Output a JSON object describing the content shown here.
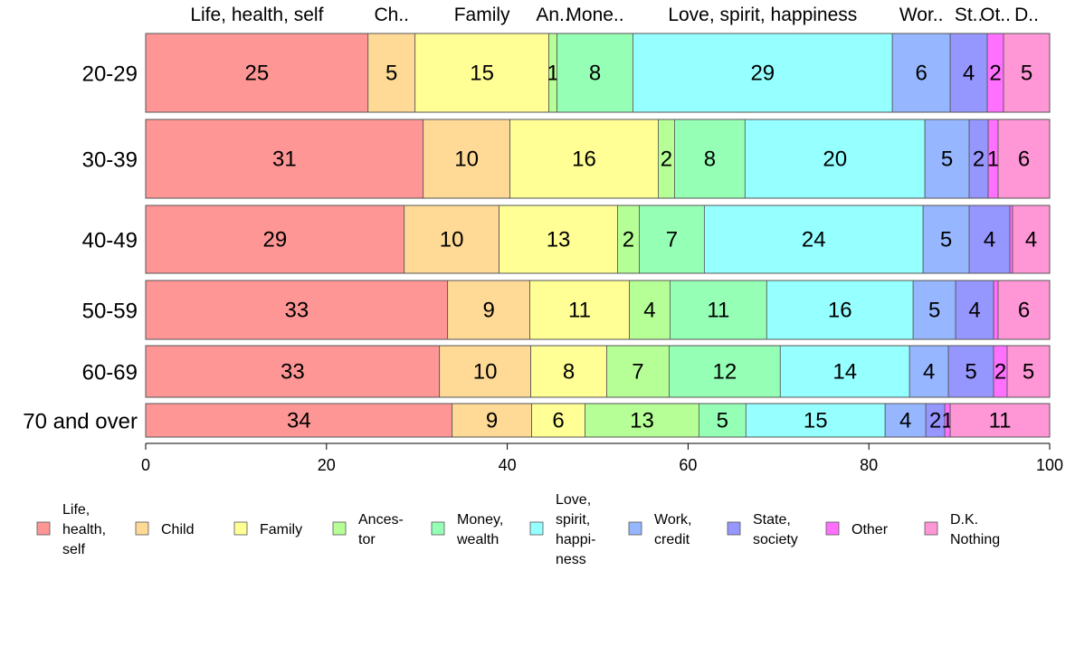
{
  "chart_data": {
    "type": "bar",
    "orientation": "horizontal",
    "stacked": true,
    "xlim": [
      0,
      100
    ],
    "x_ticks": [
      "0",
      "20",
      "40",
      "60",
      "80",
      "100"
    ],
    "top_category_labels": [
      "Life, health, self",
      "Ch..",
      "Family",
      "An..",
      "Mone..",
      "Love, spirit, happiness",
      "Wor..",
      "St..",
      "Ot..",
      "D.."
    ],
    "categories": [
      "20-29",
      "30-39",
      "40-49",
      "50-59",
      "60-69",
      "70 and over"
    ],
    "series": [
      {
        "name": "Life, health, self",
        "legend": [
          "Life,",
          "health,",
          "self"
        ],
        "color": "#FF9696",
        "values": [
          24.6,
          30.7,
          28.6,
          33.4,
          32.5,
          33.9
        ],
        "labels": [
          "25",
          "31",
          "29",
          "33",
          "33",
          "34"
        ]
      },
      {
        "name": "Child",
        "legend": [
          "Child"
        ],
        "color": "#FFDA96",
        "values": [
          5.2,
          9.6,
          10.5,
          9.1,
          10.1,
          8.8
        ],
        "labels": [
          "5",
          "10",
          "10",
          "9",
          "10",
          "9"
        ]
      },
      {
        "name": "Family",
        "legend": [
          "Family"
        ],
        "color": "#FFFF96",
        "values": [
          14.8,
          16.4,
          13.1,
          11.0,
          8.4,
          5.9
        ],
        "labels": [
          "15",
          "16",
          "13",
          "11",
          "8",
          "6"
        ]
      },
      {
        "name": "Ancestor",
        "legend": [
          "Ances-",
          "tor"
        ],
        "color": "#B6FF96",
        "values": [
          0.9,
          1.8,
          2.4,
          4.5,
          6.9,
          12.6
        ],
        "labels": [
          "1",
          "2",
          "2",
          "4",
          "7",
          "13"
        ]
      },
      {
        "name": "Money, wealth",
        "legend": [
          "Money,",
          "wealth"
        ],
        "color": "#96FFB6",
        "values": [
          8.4,
          7.8,
          7.2,
          10.7,
          12.3,
          5.2
        ],
        "labels": [
          "8",
          "8",
          "7",
          "11",
          "12",
          "5"
        ]
      },
      {
        "name": "Love, spirit, happiness",
        "legend": [
          "Love,",
          "spirit,",
          "happi-",
          "ness"
        ],
        "color": "#96FFFF",
        "values": [
          28.7,
          19.9,
          24.2,
          16.2,
          14.3,
          15.4
        ],
        "labels": [
          "29",
          "20",
          "24",
          "16",
          "14",
          "15"
        ]
      },
      {
        "name": "Work, credit",
        "legend": [
          "Work,",
          "credit"
        ],
        "color": "#96B6FF",
        "values": [
          6.4,
          4.9,
          5.1,
          4.7,
          4.3,
          4.5
        ],
        "labels": [
          "6",
          "5",
          "5",
          "5",
          "4",
          "4"
        ]
      },
      {
        "name": "State, society",
        "legend": [
          "State,",
          "society"
        ],
        "color": "#9696FF",
        "values": [
          4.1,
          2.1,
          4.5,
          4.2,
          5.0,
          2.1
        ],
        "labels": [
          "4",
          "2",
          "4",
          "4",
          "5",
          "2"
        ]
      },
      {
        "name": "Other",
        "legend": [
          "Other"
        ],
        "color": "#FF70FF",
        "values": [
          1.8,
          1.1,
          0.3,
          0.5,
          1.5,
          0.6
        ],
        "labels": [
          "2",
          "1",
          "",
          "",
          "2",
          "1"
        ]
      },
      {
        "name": "D.K. Nothing",
        "legend": [
          "D.K.",
          "Nothing"
        ],
        "color": "#FF96D6",
        "values": [
          5.1,
          5.7,
          4.1,
          5.7,
          4.7,
          11.0
        ],
        "labels": [
          "5",
          "6",
          "4",
          "6",
          "5",
          "11"
        ]
      }
    ]
  }
}
